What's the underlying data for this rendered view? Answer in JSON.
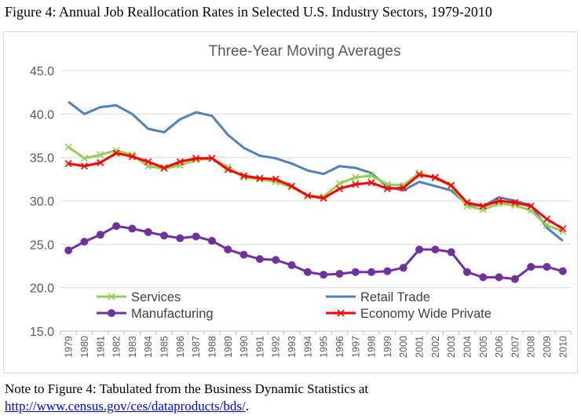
{
  "figure_title": "Figure 4:  Annual Job Reallocation Rates in Selected U.S. Industry Sectors, 1979-2010",
  "note": {
    "text": "Note to Figure 4: Tabulated from the Business Dynamic Statistics at",
    "link": "http://www.census.gov/ces/dataproducts/bds/",
    "suffix": "."
  },
  "chart_data": {
    "type": "line",
    "title": "Three-Year Moving Averages",
    "xlabel": "",
    "ylabel": "",
    "ylim": [
      15,
      45
    ],
    "yticks": [
      "15.0",
      "20.0",
      "25.0",
      "30.0",
      "35.0",
      "40.0",
      "45.0"
    ],
    "grid": true,
    "legend_position": "bottom-inside",
    "categories": [
      "1979",
      "1980",
      "1981",
      "1982",
      "1983",
      "1984",
      "1985",
      "1986",
      "1987",
      "1988",
      "1989",
      "1990",
      "1991",
      "1992",
      "1993",
      "1994",
      "1995",
      "1996",
      "1997",
      "1998",
      "1999",
      "2000",
      "2001",
      "2002",
      "2003",
      "2004",
      "2005",
      "2006",
      "2007",
      "2008",
      "2009",
      "2010"
    ],
    "series": [
      {
        "name": "Services",
        "color": "#92d050",
        "marker": "x",
        "values": [
          36.2,
          34.9,
          35.3,
          35.8,
          35.3,
          34.0,
          33.7,
          34.1,
          34.7,
          34.9,
          33.9,
          32.7,
          32.5,
          32.2,
          31.6,
          30.6,
          30.5,
          32.0,
          32.7,
          32.9,
          31.9,
          31.8,
          33.2,
          32.6,
          31.7,
          29.4,
          29.0,
          29.7,
          29.5,
          28.9,
          27.2,
          26.5
        ]
      },
      {
        "name": "Retail Trade",
        "color": "#4f81bd",
        "marker": "none",
        "values": [
          41.4,
          40.0,
          40.8,
          41.0,
          40.0,
          38.3,
          37.9,
          39.4,
          40.2,
          39.8,
          37.6,
          36.1,
          35.2,
          34.9,
          34.3,
          33.5,
          33.1,
          34.0,
          33.8,
          33.2,
          31.6,
          31.2,
          32.2,
          31.7,
          31.2,
          29.6,
          29.4,
          30.4,
          30.0,
          29.5,
          26.9,
          25.4
        ]
      },
      {
        "name": "Manufacturing",
        "color": "#7030a0",
        "marker": "circle",
        "values": [
          24.3,
          25.3,
          26.1,
          27.1,
          26.8,
          26.4,
          26.0,
          25.7,
          25.9,
          25.4,
          24.4,
          23.8,
          23.3,
          23.2,
          22.6,
          21.8,
          21.5,
          21.6,
          21.8,
          21.8,
          21.9,
          22.3,
          24.4,
          24.4,
          24.1,
          21.8,
          21.2,
          21.2,
          21.0,
          22.4,
          22.4,
          21.9
        ]
      },
      {
        "name": "Economy Wide Private",
        "color": "#ff0000",
        "marker": "x",
        "values": [
          34.3,
          34.0,
          34.4,
          35.5,
          35.1,
          34.5,
          33.8,
          34.5,
          34.9,
          34.9,
          33.6,
          32.9,
          32.6,
          32.5,
          31.7,
          30.6,
          30.3,
          31.4,
          31.9,
          32.1,
          31.4,
          31.5,
          33.0,
          32.7,
          31.8,
          29.8,
          29.4,
          30.0,
          29.8,
          29.4,
          27.9,
          26.8
        ]
      }
    ]
  }
}
